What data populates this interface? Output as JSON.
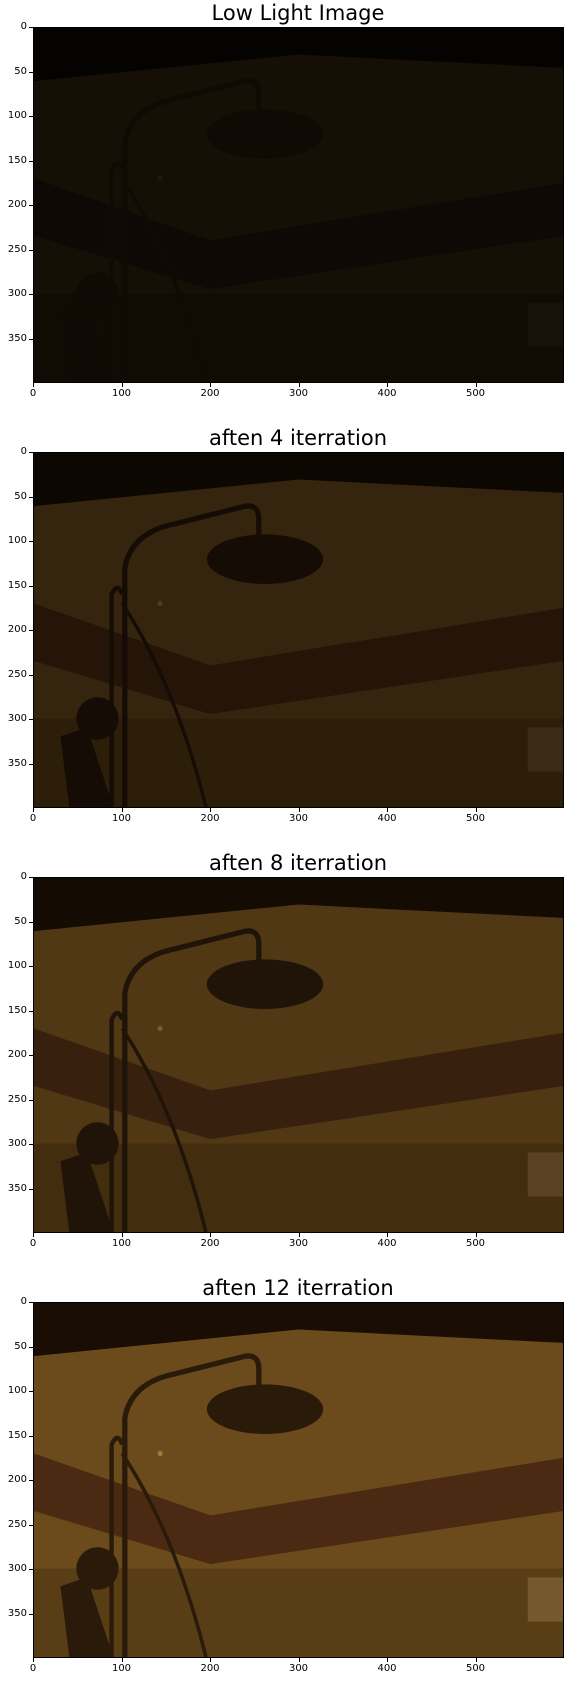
{
  "panels": [
    {
      "title": "Low Light Image",
      "brightness": 0.12
    },
    {
      "title": "aften 4 iterration",
      "brightness": 0.3
    },
    {
      "title": "aften 8 iterration",
      "brightness": 0.45
    },
    {
      "title": "aften 12 iterration",
      "brightness": 0.6
    }
  ],
  "axes": {
    "y_ticks": [
      "0",
      "50",
      "100",
      "150",
      "200",
      "250",
      "300",
      "350"
    ],
    "x_ticks": [
      "0",
      "100",
      "200",
      "300",
      "400",
      "500"
    ]
  },
  "colors": {
    "tint": "#3a2408",
    "wall": "#6b4a1c",
    "band": "#4a2a12",
    "ceiling": "#1a0e04"
  }
}
